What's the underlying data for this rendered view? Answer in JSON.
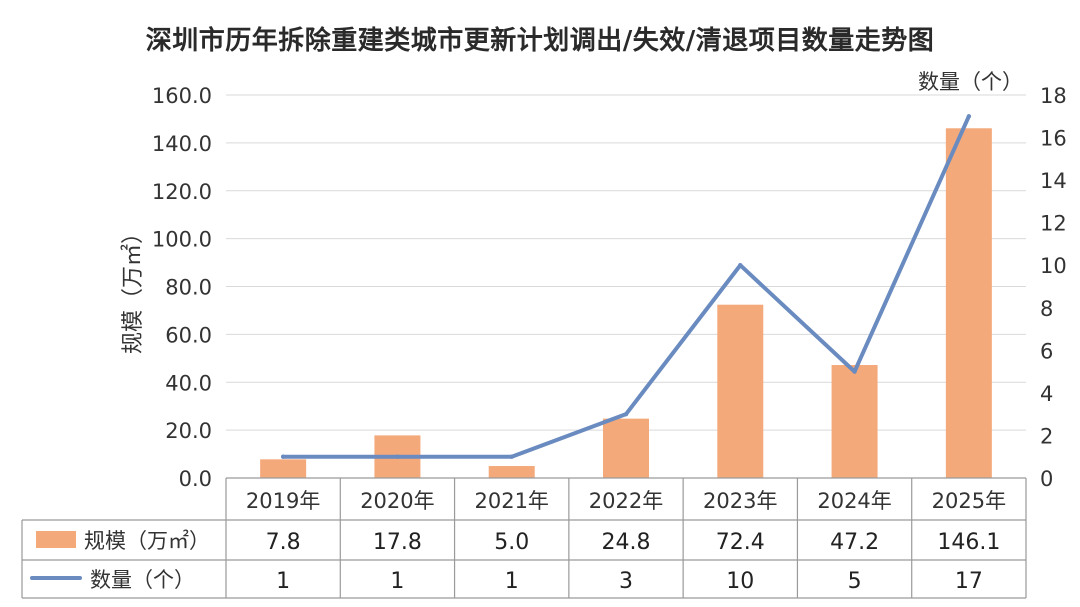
{
  "title": "深圳市历年拆除重建类城市更新计划调出/失效/清退项目数量走势图",
  "chart_data": {
    "type": "bar",
    "title": "深圳市历年拆除重建类城市更新计划调出/失效/清退项目数量走势图",
    "categories": [
      "2019年",
      "2020年",
      "2021年",
      "2022年",
      "2023年",
      "2024年",
      "2025年"
    ],
    "ylabel": "规模（万㎡）",
    "y2label": "数量（个）",
    "ylim": [
      0,
      160
    ],
    "y2lim": [
      0,
      18
    ],
    "yticks": [
      "0.0",
      "20.0",
      "40.0",
      "60.0",
      "80.0",
      "100.0",
      "120.0",
      "140.0",
      "160.0"
    ],
    "y2ticks": [
      "0",
      "2",
      "4",
      "6",
      "8",
      "10",
      "12",
      "14",
      "16",
      "18"
    ],
    "grid": true,
    "legend": "data-table",
    "series": [
      {
        "name": "规模（万㎡）",
        "type": "bar",
        "axis": "left",
        "color": "#f4a97a",
        "values": [
          7.8,
          17.8,
          5.0,
          24.8,
          72.4,
          47.2,
          146.1
        ],
        "labels": [
          "7.8",
          "17.8",
          "5.0",
          "24.8",
          "72.4",
          "47.2",
          "146.1"
        ]
      },
      {
        "name": "数量（个）",
        "type": "line",
        "axis": "right",
        "color": "#6a8bc0",
        "values": [
          1,
          1,
          1,
          3,
          10,
          5,
          17
        ],
        "labels": [
          "1",
          "1",
          "1",
          "3",
          "10",
          "5",
          "17"
        ]
      }
    ]
  }
}
